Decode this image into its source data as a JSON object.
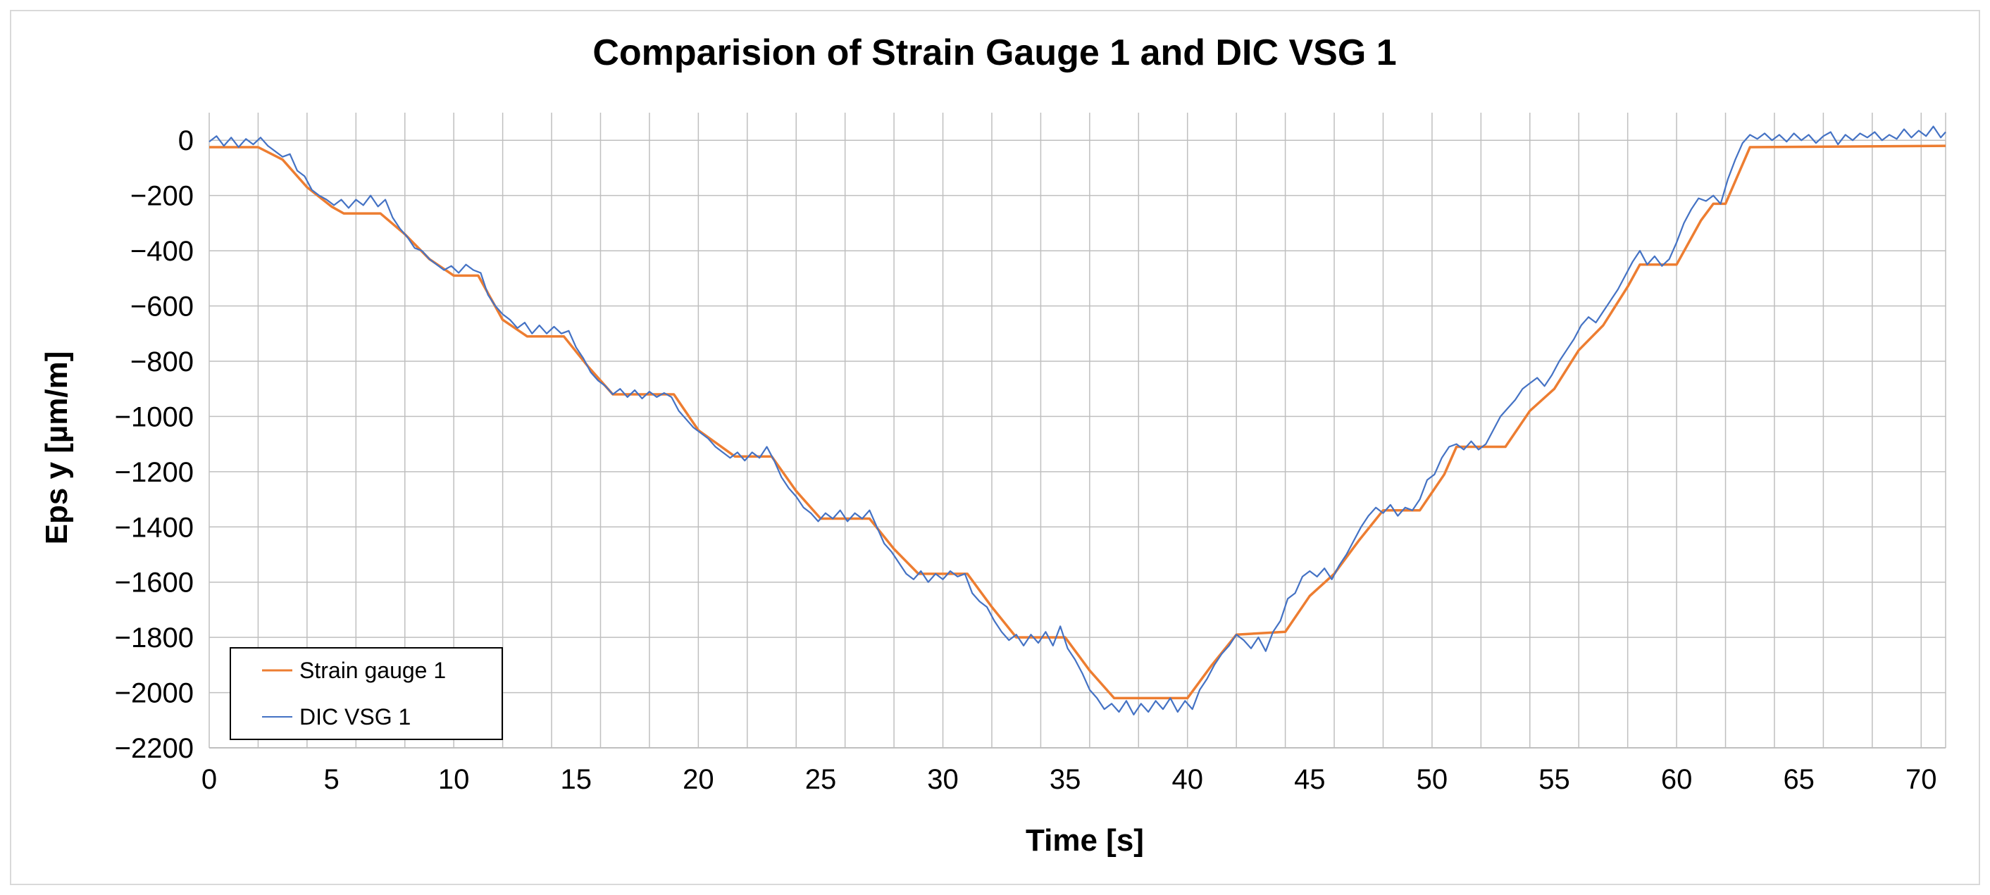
{
  "chart_data": {
    "type": "line",
    "title": "Comparision of Strain Gauge 1 and DIC VSG 1",
    "xlabel": "Time [s]",
    "ylabel": "Eps y [µm/m]",
    "xlim": [
      0,
      71
    ],
    "ylim": [
      -2200,
      100
    ],
    "xticks": [
      0,
      5,
      10,
      15,
      20,
      25,
      30,
      35,
      40,
      45,
      50,
      55,
      60,
      65,
      70
    ],
    "yticks": [
      0,
      -200,
      -400,
      -600,
      -800,
      -1000,
      -1200,
      -1400,
      -1600,
      -1800,
      -2000,
      -2200
    ],
    "x_minor_grid_step": 2,
    "grid": true,
    "legend_position": "bottom-left",
    "colors": {
      "strain_gauge": "#ED7D31",
      "dic": "#4472C4",
      "grid": "#bfbfbf",
      "frame": "#d9d9d9"
    },
    "series": [
      {
        "name": "Strain gauge 1",
        "color": "#ED7D31",
        "points": [
          [
            0,
            -25
          ],
          [
            2,
            -25
          ],
          [
            3,
            -70
          ],
          [
            4,
            -170
          ],
          [
            5,
            -240
          ],
          [
            5.5,
            -265
          ],
          [
            7,
            -265
          ],
          [
            8,
            -340
          ],
          [
            9,
            -430
          ],
          [
            10,
            -490
          ],
          [
            11,
            -490
          ],
          [
            12,
            -650
          ],
          [
            13,
            -710
          ],
          [
            14.5,
            -710
          ],
          [
            15.5,
            -820
          ],
          [
            16.5,
            -920
          ],
          [
            19,
            -920
          ],
          [
            20,
            -1050
          ],
          [
            21.5,
            -1145
          ],
          [
            23,
            -1145
          ],
          [
            24,
            -1270
          ],
          [
            25,
            -1370
          ],
          [
            27,
            -1370
          ],
          [
            28,
            -1480
          ],
          [
            29,
            -1570
          ],
          [
            31,
            -1570
          ],
          [
            32,
            -1690
          ],
          [
            33,
            -1800
          ],
          [
            35,
            -1800
          ],
          [
            36,
            -1920
          ],
          [
            37,
            -2020
          ],
          [
            40,
            -2020
          ],
          [
            41,
            -1900
          ],
          [
            42,
            -1790
          ],
          [
            44,
            -1780
          ],
          [
            45,
            -1650
          ],
          [
            46,
            -1570
          ],
          [
            47,
            -1450
          ],
          [
            48,
            -1340
          ],
          [
            49.5,
            -1340
          ],
          [
            50.5,
            -1210
          ],
          [
            51,
            -1110
          ],
          [
            53,
            -1110
          ],
          [
            54,
            -980
          ],
          [
            55,
            -900
          ],
          [
            56,
            -760
          ],
          [
            57,
            -670
          ],
          [
            58,
            -530
          ],
          [
            58.5,
            -450
          ],
          [
            60,
            -450
          ],
          [
            61,
            -290
          ],
          [
            61.5,
            -230
          ],
          [
            62,
            -230
          ],
          [
            63,
            -25
          ],
          [
            71,
            -20
          ]
        ]
      },
      {
        "name": "DIC VSG 1",
        "color": "#4472C4",
        "points": [
          [
            0,
            -5
          ],
          [
            0.3,
            15
          ],
          [
            0.6,
            -20
          ],
          [
            0.9,
            10
          ],
          [
            1.2,
            -25
          ],
          [
            1.5,
            5
          ],
          [
            1.8,
            -15
          ],
          [
            2.1,
            10
          ],
          [
            2.4,
            -20
          ],
          [
            2.7,
            -40
          ],
          [
            3,
            -60
          ],
          [
            3.3,
            -50
          ],
          [
            3.6,
            -110
          ],
          [
            3.9,
            -130
          ],
          [
            4.2,
            -180
          ],
          [
            4.5,
            -200
          ],
          [
            4.8,
            -215
          ],
          [
            5.1,
            -235
          ],
          [
            5.4,
            -215
          ],
          [
            5.7,
            -245
          ],
          [
            6,
            -215
          ],
          [
            6.3,
            -235
          ],
          [
            6.6,
            -200
          ],
          [
            6.9,
            -240
          ],
          [
            7.2,
            -215
          ],
          [
            7.5,
            -280
          ],
          [
            7.8,
            -320
          ],
          [
            8.1,
            -350
          ],
          [
            8.4,
            -390
          ],
          [
            8.7,
            -400
          ],
          [
            9,
            -430
          ],
          [
            9.3,
            -450
          ],
          [
            9.6,
            -470
          ],
          [
            9.9,
            -455
          ],
          [
            10.2,
            -480
          ],
          [
            10.5,
            -450
          ],
          [
            10.8,
            -470
          ],
          [
            11.1,
            -480
          ],
          [
            11.4,
            -560
          ],
          [
            11.7,
            -600
          ],
          [
            12,
            -630
          ],
          [
            12.3,
            -650
          ],
          [
            12.6,
            -680
          ],
          [
            12.9,
            -660
          ],
          [
            13.2,
            -700
          ],
          [
            13.5,
            -670
          ],
          [
            13.8,
            -700
          ],
          [
            14.1,
            -675
          ],
          [
            14.4,
            -700
          ],
          [
            14.7,
            -690
          ],
          [
            15,
            -750
          ],
          [
            15.3,
            -790
          ],
          [
            15.6,
            -840
          ],
          [
            15.9,
            -870
          ],
          [
            16.2,
            -890
          ],
          [
            16.5,
            -920
          ],
          [
            16.8,
            -900
          ],
          [
            17.1,
            -930
          ],
          [
            17.4,
            -905
          ],
          [
            17.7,
            -935
          ],
          [
            18,
            -910
          ],
          [
            18.3,
            -930
          ],
          [
            18.6,
            -915
          ],
          [
            18.9,
            -930
          ],
          [
            19.2,
            -980
          ],
          [
            19.5,
            -1010
          ],
          [
            19.8,
            -1040
          ],
          [
            20.1,
            -1060
          ],
          [
            20.4,
            -1080
          ],
          [
            20.7,
            -1110
          ],
          [
            21,
            -1130
          ],
          [
            21.3,
            -1150
          ],
          [
            21.6,
            -1130
          ],
          [
            21.9,
            -1160
          ],
          [
            22.2,
            -1130
          ],
          [
            22.5,
            -1150
          ],
          [
            22.8,
            -1110
          ],
          [
            23.1,
            -1160
          ],
          [
            23.4,
            -1220
          ],
          [
            23.7,
            -1260
          ],
          [
            24,
            -1290
          ],
          [
            24.3,
            -1330
          ],
          [
            24.6,
            -1350
          ],
          [
            24.9,
            -1380
          ],
          [
            25.2,
            -1350
          ],
          [
            25.5,
            -1370
          ],
          [
            25.8,
            -1340
          ],
          [
            26.1,
            -1380
          ],
          [
            26.4,
            -1350
          ],
          [
            26.7,
            -1370
          ],
          [
            27,
            -1340
          ],
          [
            27.3,
            -1400
          ],
          [
            27.6,
            -1460
          ],
          [
            27.9,
            -1490
          ],
          [
            28.2,
            -1530
          ],
          [
            28.5,
            -1570
          ],
          [
            28.8,
            -1590
          ],
          [
            29.1,
            -1560
          ],
          [
            29.4,
            -1600
          ],
          [
            29.7,
            -1570
          ],
          [
            30,
            -1590
          ],
          [
            30.3,
            -1560
          ],
          [
            30.6,
            -1580
          ],
          [
            30.9,
            -1570
          ],
          [
            31.2,
            -1640
          ],
          [
            31.5,
            -1670
          ],
          [
            31.8,
            -1690
          ],
          [
            32.1,
            -1740
          ],
          [
            32.4,
            -1780
          ],
          [
            32.7,
            -1810
          ],
          [
            33,
            -1790
          ],
          [
            33.3,
            -1830
          ],
          [
            33.6,
            -1790
          ],
          [
            33.9,
            -1820
          ],
          [
            34.2,
            -1780
          ],
          [
            34.5,
            -1830
          ],
          [
            34.8,
            -1760
          ],
          [
            35.1,
            -1840
          ],
          [
            35.4,
            -1880
          ],
          [
            35.7,
            -1930
          ],
          [
            36,
            -1990
          ],
          [
            36.3,
            -2020
          ],
          [
            36.6,
            -2060
          ],
          [
            36.9,
            -2040
          ],
          [
            37.2,
            -2070
          ],
          [
            37.5,
            -2030
          ],
          [
            37.8,
            -2080
          ],
          [
            38.1,
            -2040
          ],
          [
            38.4,
            -2070
          ],
          [
            38.7,
            -2030
          ],
          [
            39,
            -2060
          ],
          [
            39.3,
            -2020
          ],
          [
            39.6,
            -2070
          ],
          [
            39.9,
            -2030
          ],
          [
            40.2,
            -2060
          ],
          [
            40.5,
            -1990
          ],
          [
            40.8,
            -1950
          ],
          [
            41.1,
            -1900
          ],
          [
            41.4,
            -1860
          ],
          [
            41.7,
            -1830
          ],
          [
            42,
            -1790
          ],
          [
            42.3,
            -1810
          ],
          [
            42.6,
            -1840
          ],
          [
            42.9,
            -1800
          ],
          [
            43.2,
            -1850
          ],
          [
            43.5,
            -1780
          ],
          [
            43.8,
            -1740
          ],
          [
            44.1,
            -1660
          ],
          [
            44.4,
            -1640
          ],
          [
            44.7,
            -1580
          ],
          [
            45,
            -1560
          ],
          [
            45.3,
            -1580
          ],
          [
            45.6,
            -1550
          ],
          [
            45.9,
            -1590
          ],
          [
            46.2,
            -1540
          ],
          [
            46.5,
            -1500
          ],
          [
            46.8,
            -1450
          ],
          [
            47.1,
            -1400
          ],
          [
            47.4,
            -1360
          ],
          [
            47.7,
            -1330
          ],
          [
            48,
            -1350
          ],
          [
            48.3,
            -1320
          ],
          [
            48.6,
            -1360
          ],
          [
            48.9,
            -1330
          ],
          [
            49.2,
            -1340
          ],
          [
            49.5,
            -1300
          ],
          [
            49.8,
            -1230
          ],
          [
            50.1,
            -1210
          ],
          [
            50.4,
            -1150
          ],
          [
            50.7,
            -1110
          ],
          [
            51,
            -1100
          ],
          [
            51.3,
            -1120
          ],
          [
            51.6,
            -1090
          ],
          [
            51.9,
            -1120
          ],
          [
            52.2,
            -1100
          ],
          [
            52.5,
            -1050
          ],
          [
            52.8,
            -1000
          ],
          [
            53.1,
            -970
          ],
          [
            53.4,
            -940
          ],
          [
            53.7,
            -900
          ],
          [
            54,
            -880
          ],
          [
            54.3,
            -860
          ],
          [
            54.6,
            -890
          ],
          [
            54.9,
            -850
          ],
          [
            55.2,
            -800
          ],
          [
            55.5,
            -760
          ],
          [
            55.8,
            -720
          ],
          [
            56.1,
            -670
          ],
          [
            56.4,
            -640
          ],
          [
            56.7,
            -660
          ],
          [
            57,
            -620
          ],
          [
            57.3,
            -580
          ],
          [
            57.6,
            -540
          ],
          [
            57.9,
            -490
          ],
          [
            58.2,
            -440
          ],
          [
            58.5,
            -400
          ],
          [
            58.8,
            -450
          ],
          [
            59.1,
            -420
          ],
          [
            59.4,
            -455
          ],
          [
            59.7,
            -430
          ],
          [
            60,
            -370
          ],
          [
            60.3,
            -300
          ],
          [
            60.6,
            -250
          ],
          [
            60.9,
            -210
          ],
          [
            61.2,
            -220
          ],
          [
            61.5,
            -200
          ],
          [
            61.8,
            -230
          ],
          [
            62.1,
            -140
          ],
          [
            62.4,
            -70
          ],
          [
            62.7,
            -10
          ],
          [
            63,
            20
          ],
          [
            63.3,
            5
          ],
          [
            63.6,
            25
          ],
          [
            63.9,
            0
          ],
          [
            64.2,
            20
          ],
          [
            64.5,
            -5
          ],
          [
            64.8,
            25
          ],
          [
            65.1,
            0
          ],
          [
            65.4,
            20
          ],
          [
            65.7,
            -10
          ],
          [
            66,
            15
          ],
          [
            66.3,
            30
          ],
          [
            66.6,
            -15
          ],
          [
            66.9,
            20
          ],
          [
            67.2,
            0
          ],
          [
            67.5,
            25
          ],
          [
            67.8,
            10
          ],
          [
            68.1,
            30
          ],
          [
            68.4,
            0
          ],
          [
            68.7,
            20
          ],
          [
            69,
            5
          ],
          [
            69.3,
            40
          ],
          [
            69.6,
            10
          ],
          [
            69.9,
            35
          ],
          [
            70.2,
            15
          ],
          [
            70.5,
            50
          ],
          [
            70.8,
            10
          ],
          [
            71,
            30
          ]
        ]
      }
    ]
  }
}
